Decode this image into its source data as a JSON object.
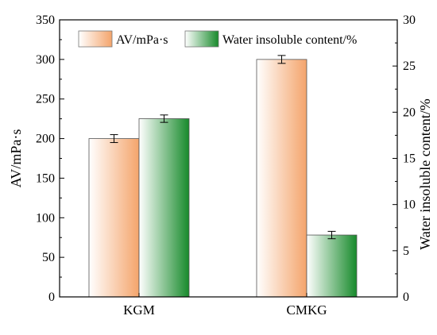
{
  "chart_data": {
    "type": "bar",
    "title": "",
    "categories": [
      "KGM",
      "CMKG"
    ],
    "series": [
      {
        "name": "AV/mPa·s",
        "axis": "left",
        "values": [
          200,
          300
        ],
        "error": [
          5,
          5
        ],
        "color_light": "#ffffff",
        "color_dark": "#f4a46b"
      },
      {
        "name": "Water insoluble content/%",
        "axis": "right",
        "values": [
          19.3,
          6.7
        ],
        "error": [
          0.4,
          0.4
        ],
        "color_light": "#ffffff",
        "color_dark": "#178a2b"
      }
    ],
    "ylabel": "AV/mPa·s",
    "ylim": [
      0,
      350
    ],
    "yticks": [
      "0",
      "50",
      "100",
      "150",
      "200",
      "250",
      "300",
      "350"
    ],
    "ylabel_right": "Water insoluble content/%",
    "ylim_right": [
      0,
      30
    ],
    "yticks_right": [
      "0",
      "5",
      "10",
      "15",
      "20",
      "25",
      "30"
    ],
    "grid": false,
    "legend_position": "top-center"
  }
}
